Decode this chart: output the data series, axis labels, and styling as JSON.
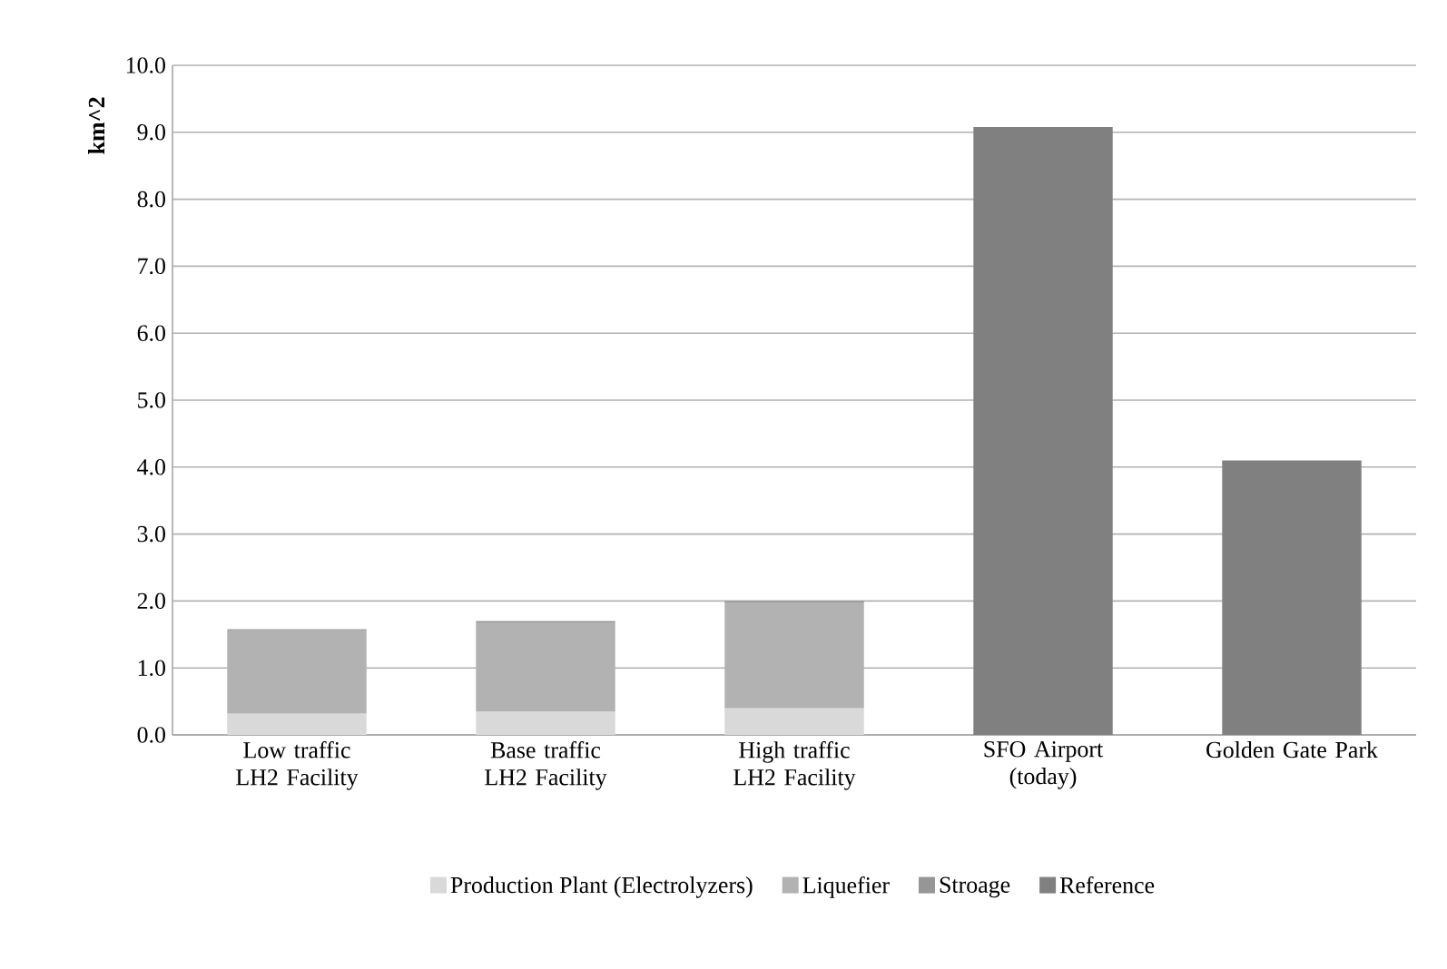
{
  "chart_data": {
    "type": "bar",
    "stacked": true,
    "ylabel": "km^2",
    "categories": [
      "Low traffic LH2 Facility",
      "Base traffic LH2 Facility",
      "High traffic LH2 Facility",
      "SFO Airport (today)",
      "Golden Gate Park"
    ],
    "series": [
      {
        "name": "Production Plant (Electrolyzers)",
        "color": "#d9d9d9",
        "values": [
          0.32,
          0.35,
          0.4,
          null,
          null
        ]
      },
      {
        "name": "Liquefier",
        "color": "#b2b2b2",
        "values": [
          1.24,
          1.33,
          1.57,
          null,
          null
        ]
      },
      {
        "name": "Stroage",
        "color": "#969696",
        "values": [
          0.02,
          0.02,
          0.03,
          null,
          null
        ]
      },
      {
        "name": "Reference",
        "color": "#808080",
        "values": [
          null,
          null,
          null,
          9.08,
          4.1
        ]
      }
    ],
    "ylim": [
      0,
      10
    ],
    "yticks": [
      {
        "value": 0,
        "label": "0.0"
      },
      {
        "value": 1,
        "label": "1.0"
      },
      {
        "value": 2,
        "label": "2.0"
      },
      {
        "value": 3,
        "label": "3.0"
      },
      {
        "value": 4,
        "label": "4.0"
      },
      {
        "value": 5,
        "label": "5.0"
      },
      {
        "value": 6,
        "label": "6.0"
      },
      {
        "value": 7,
        "label": "7.0"
      },
      {
        "value": 8,
        "label": "8.0"
      },
      {
        "value": 9,
        "label": "9.0"
      },
      {
        "value": 10,
        "label": "10.0"
      }
    ],
    "grid": "y",
    "legend": "bottom"
  }
}
